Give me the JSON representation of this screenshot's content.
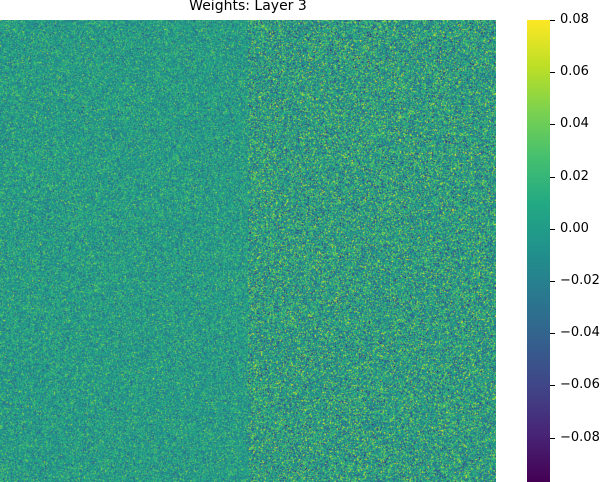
{
  "chart_data": {
    "type": "heatmap",
    "title": "Weights: Layer 3",
    "xlabel": "",
    "ylabel": "",
    "colormap": "viridis",
    "vmin": -0.097,
    "vmax": 0.08,
    "colorbar_ticks": [
      0.08,
      0.06,
      0.04,
      0.02,
      0.0,
      -0.02,
      -0.04,
      -0.06,
      -0.08
    ],
    "colorbar_tick_labels": [
      "0.08",
      "0.06",
      "0.04",
      "0.02",
      "0.00",
      "−0.02",
      "−0.04",
      "−0.06",
      "−0.08"
    ],
    "regions": [
      {
        "columns": "left half",
        "mean": 0.0,
        "std": 0.02
      },
      {
        "columns": "right half",
        "mean": 0.0,
        "std": 0.03
      }
    ],
    "colors": {
      "cmap_low": "#440154",
      "cmap_mid": "#21918c",
      "cmap_high": "#fde725"
    }
  }
}
